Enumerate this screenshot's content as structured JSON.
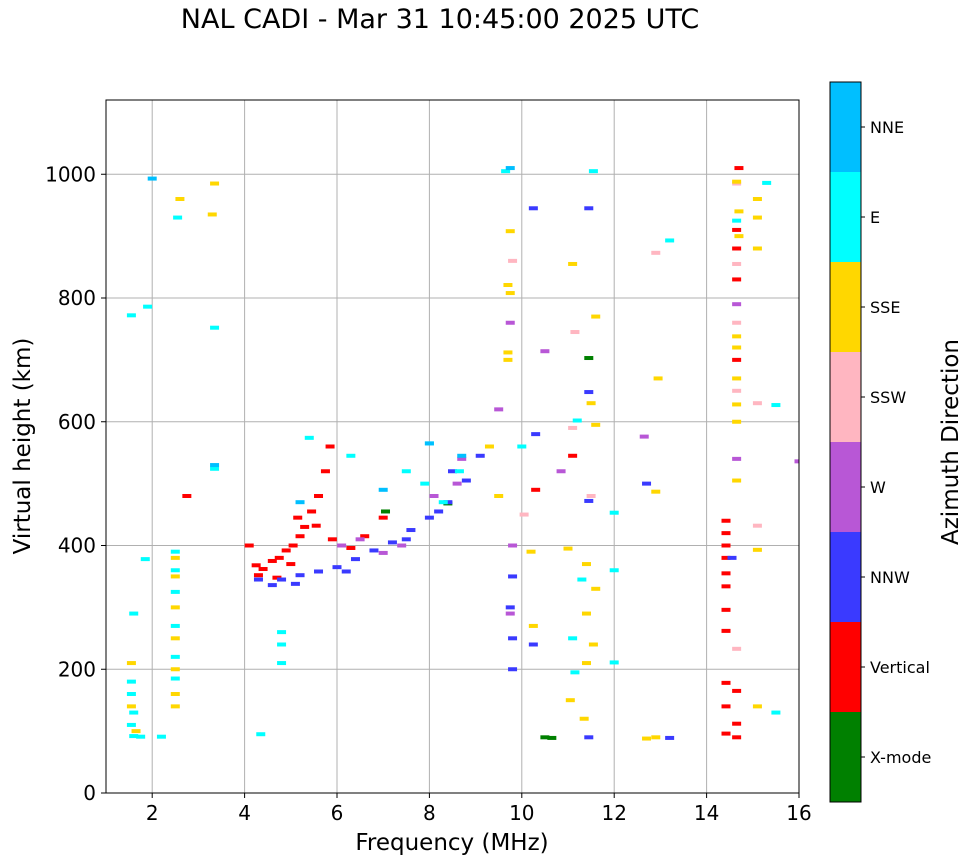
{
  "chart_data": {
    "type": "scatter",
    "title": "NAL CADI - Mar 31 10:45:00 2025 UTC",
    "xlabel": "Frequency (MHz)",
    "ylabel": "Virtual height (km)",
    "xlim": [
      1,
      16
    ],
    "ylim": [
      0,
      1120
    ],
    "xticks": [
      "2",
      "4",
      "6",
      "8",
      "10",
      "12",
      "14",
      "16"
    ],
    "xtick_values": [
      2,
      4,
      6,
      8,
      10,
      12,
      14,
      16
    ],
    "yticks": [
      "0",
      "200",
      "400",
      "600",
      "800",
      "1000"
    ],
    "ytick_values": [
      0,
      200,
      400,
      600,
      800,
      1000
    ],
    "grid": true,
    "colorbar": {
      "label": "Azimuth Direction",
      "categories": [
        "X-mode",
        "Vertical",
        "NNW",
        "W",
        "SSW",
        "SSE",
        "E",
        "NNE"
      ],
      "colors": [
        "#008000",
        "#ff0000",
        "#3a3aff",
        "#b857d6",
        "#ffb6c1",
        "#ffd700",
        "#00ffff",
        "#00bfff"
      ]
    },
    "series": [
      {
        "name": "X-mode",
        "points": [
          [
            10.5,
            90
          ],
          [
            11.45,
            703
          ],
          [
            8.4,
            468
          ],
          [
            7.05,
            455
          ],
          [
            10.65,
            89
          ]
        ]
      },
      {
        "name": "Vertical",
        "points": [
          [
            4.25,
            368
          ],
          [
            4.4,
            362
          ],
          [
            4.6,
            375
          ],
          [
            4.75,
            380
          ],
          [
            4.9,
            392
          ],
          [
            5.05,
            400
          ],
          [
            5.2,
            415
          ],
          [
            5.3,
            430
          ],
          [
            5.45,
            455
          ],
          [
            5.6,
            480
          ],
          [
            5.75,
            520
          ],
          [
            5.85,
            560
          ],
          [
            4.1,
            400
          ],
          [
            4.3,
            352
          ],
          [
            4.7,
            348
          ],
          [
            5.0,
            370
          ],
          [
            5.15,
            445
          ],
          [
            5.55,
            432
          ],
          [
            5.9,
            410
          ],
          [
            6.3,
            396
          ],
          [
            6.6,
            415
          ],
          [
            7.0,
            445
          ],
          [
            2.75,
            480
          ],
          [
            14.42,
            96
          ],
          [
            14.42,
            140
          ],
          [
            14.42,
            178
          ],
          [
            14.42,
            262
          ],
          [
            14.42,
            296
          ],
          [
            14.42,
            334
          ],
          [
            14.42,
            355
          ],
          [
            14.42,
            380
          ],
          [
            14.42,
            400
          ],
          [
            14.42,
            420
          ],
          [
            14.42,
            440
          ],
          [
            14.7,
            1010
          ],
          [
            14.65,
            910
          ],
          [
            14.65,
            880
          ],
          [
            14.65,
            830
          ],
          [
            14.65,
            700
          ],
          [
            14.65,
            165
          ],
          [
            14.65,
            112
          ],
          [
            14.65,
            90
          ],
          [
            11.1,
            545
          ],
          [
            10.3,
            490
          ]
        ]
      },
      {
        "name": "NNW",
        "points": [
          [
            4.3,
            345
          ],
          [
            4.8,
            345
          ],
          [
            5.2,
            352
          ],
          [
            5.6,
            358
          ],
          [
            6.0,
            365
          ],
          [
            6.4,
            378
          ],
          [
            6.8,
            392
          ],
          [
            7.2,
            405
          ],
          [
            7.6,
            425
          ],
          [
            8.0,
            445
          ],
          [
            8.4,
            470
          ],
          [
            8.8,
            505
          ],
          [
            9.1,
            545
          ],
          [
            10.25,
            945
          ],
          [
            11.45,
            945
          ],
          [
            9.8,
            350
          ],
          [
            9.75,
            300
          ],
          [
            9.8,
            250
          ],
          [
            9.8,
            200
          ],
          [
            10.3,
            580
          ],
          [
            12.7,
            500
          ],
          [
            11.45,
            648
          ],
          [
            11.45,
            472
          ],
          [
            13.2,
            89
          ],
          [
            10.25,
            240
          ],
          [
            11.45,
            90
          ],
          [
            4.6,
            336
          ],
          [
            5.1,
            338
          ],
          [
            6.2,
            358
          ],
          [
            7.5,
            410
          ],
          [
            8.2,
            455
          ],
          [
            8.5,
            520
          ],
          [
            14.55,
            380
          ]
        ]
      },
      {
        "name": "W",
        "points": [
          [
            9.5,
            620
          ],
          [
            9.75,
            760
          ],
          [
            10.5,
            714
          ],
          [
            12.65,
            576
          ],
          [
            6.1,
            400
          ],
          [
            6.5,
            410
          ],
          [
            7.0,
            388
          ],
          [
            7.4,
            400
          ],
          [
            8.1,
            480
          ],
          [
            8.6,
            500
          ],
          [
            8.7,
            540
          ],
          [
            14.65,
            790
          ],
          [
            14.65,
            540
          ],
          [
            10.85,
            520
          ],
          [
            16.0,
            536
          ],
          [
            9.8,
            400
          ],
          [
            9.75,
            290
          ]
        ]
      },
      {
        "name": "SSW",
        "points": [
          [
            14.65,
            985
          ],
          [
            14.65,
            855
          ],
          [
            14.65,
            760
          ],
          [
            14.65,
            650
          ],
          [
            15.1,
            630
          ],
          [
            15.1,
            432
          ],
          [
            14.65,
            233
          ],
          [
            11.15,
            745
          ],
          [
            11.5,
            480
          ],
          [
            12.9,
            873
          ],
          [
            10.05,
            450
          ],
          [
            11.1,
            590
          ],
          [
            9.8,
            860
          ]
        ]
      },
      {
        "name": "SSE",
        "points": [
          [
            14.65,
            988
          ],
          [
            14.7,
            940
          ],
          [
            15.1,
            930
          ],
          [
            15.1,
            880
          ],
          [
            14.7,
            900
          ],
          [
            14.65,
            738
          ],
          [
            14.65,
            720
          ],
          [
            14.65,
            670
          ],
          [
            14.65,
            628
          ],
          [
            14.65,
            600
          ],
          [
            14.65,
            505
          ],
          [
            15.1,
            393
          ],
          [
            9.7,
            712
          ],
          [
            9.7,
            700
          ],
          [
            9.75,
            808
          ],
          [
            9.75,
            908
          ],
          [
            9.7,
            821
          ],
          [
            9.3,
            560
          ],
          [
            9.5,
            480
          ],
          [
            12.95,
            670
          ],
          [
            12.9,
            487
          ],
          [
            12.9,
            90
          ],
          [
            12.7,
            88
          ],
          [
            11.1,
            855
          ],
          [
            11.6,
            770
          ],
          [
            11.5,
            630
          ],
          [
            11.6,
            595
          ],
          [
            11.0,
            395
          ],
          [
            11.4,
            370
          ],
          [
            11.6,
            330
          ],
          [
            11.4,
            290
          ],
          [
            11.55,
            240
          ],
          [
            11.4,
            210
          ],
          [
            11.05,
            150
          ],
          [
            11.35,
            120
          ],
          [
            10.2,
            390
          ],
          [
            10.25,
            270
          ],
          [
            2.5,
            380
          ],
          [
            2.5,
            350
          ],
          [
            2.5,
            300
          ],
          [
            2.5,
            250
          ],
          [
            2.5,
            200
          ],
          [
            2.5,
            160
          ],
          [
            2.5,
            140
          ],
          [
            1.55,
            140
          ],
          [
            1.55,
            210
          ],
          [
            1.65,
            100
          ],
          [
            2.6,
            960
          ],
          [
            3.35,
            985
          ],
          [
            3.3,
            935
          ],
          [
            15.1,
            140
          ],
          [
            15.1,
            960
          ]
        ]
      },
      {
        "name": "E",
        "points": [
          [
            1.55,
            180
          ],
          [
            1.55,
            160
          ],
          [
            1.6,
            130
          ],
          [
            1.55,
            110
          ],
          [
            1.6,
            92
          ],
          [
            1.75,
            91
          ],
          [
            2.2,
            91
          ],
          [
            2.5,
            390
          ],
          [
            2.5,
            360
          ],
          [
            2.5,
            325
          ],
          [
            2.5,
            270
          ],
          [
            2.5,
            220
          ],
          [
            2.5,
            185
          ],
          [
            4.8,
            260
          ],
          [
            4.8,
            240
          ],
          [
            4.8,
            210
          ],
          [
            4.35,
            95
          ],
          [
            3.35,
            524
          ],
          [
            5.4,
            574
          ],
          [
            6.3,
            545
          ],
          [
            7.5,
            520
          ],
          [
            8.0,
            565
          ],
          [
            7.9,
            500
          ],
          [
            8.3,
            470
          ],
          [
            8.65,
            520
          ],
          [
            10.0,
            560
          ],
          [
            12.0,
            453
          ],
          [
            12.0,
            360
          ],
          [
            12.0,
            211
          ],
          [
            11.1,
            250
          ],
          [
            11.3,
            345
          ],
          [
            11.15,
            195
          ],
          [
            11.2,
            602
          ],
          [
            13.2,
            893
          ],
          [
            15.3,
            986
          ],
          [
            15.5,
            627
          ],
          [
            15.5,
            130
          ],
          [
            14.65,
            925
          ],
          [
            9.65,
            1005
          ],
          [
            11.55,
            1005
          ],
          [
            2.55,
            930
          ],
          [
            1.55,
            772
          ],
          [
            1.9,
            786
          ],
          [
            1.6,
            290
          ],
          [
            1.85,
            378
          ],
          [
            3.35,
            752
          ]
        ]
      },
      {
        "name": "NNE",
        "points": [
          [
            2.0,
            993
          ],
          [
            8.0,
            565
          ],
          [
            7.0,
            490
          ],
          [
            8.7,
            545
          ],
          [
            5.2,
            470
          ],
          [
            3.35,
            530
          ],
          [
            9.75,
            1010
          ]
        ]
      }
    ]
  }
}
